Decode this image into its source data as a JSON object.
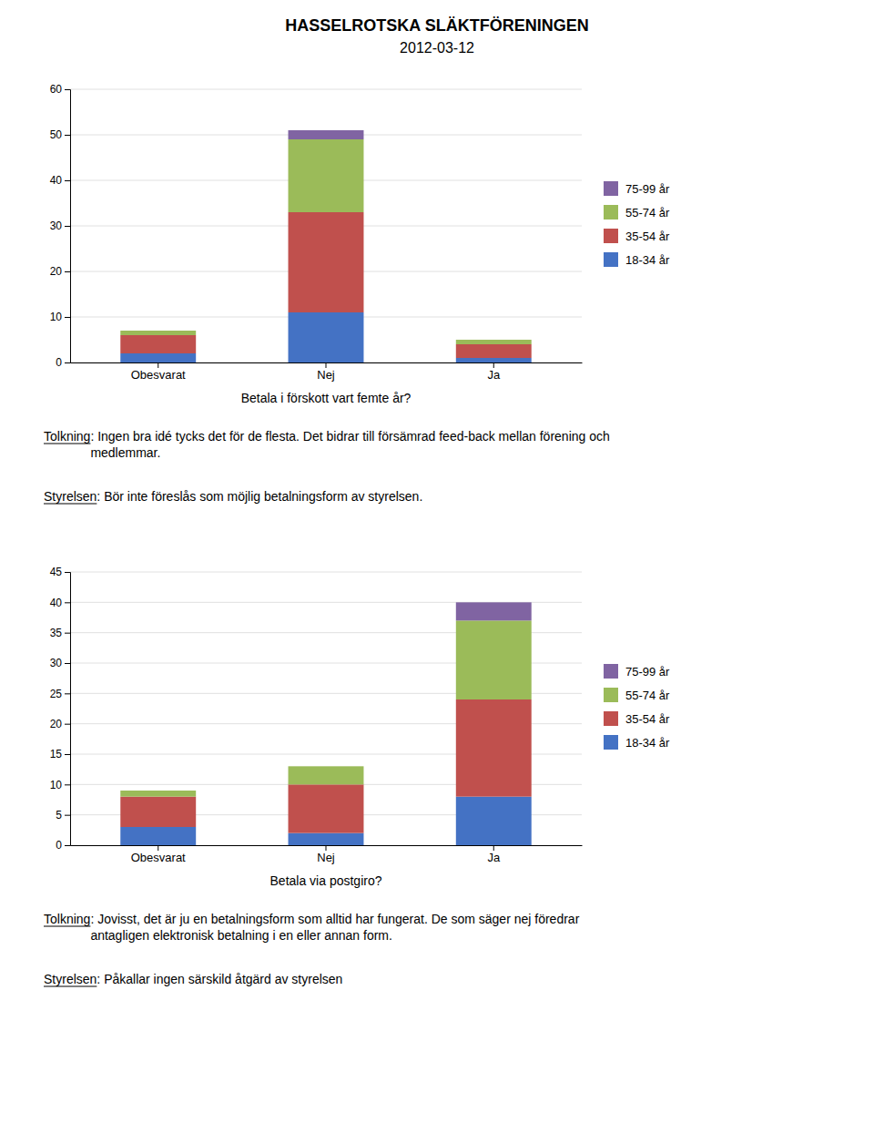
{
  "title": "HASSELROTSKA SLÄKTFÖRENINGEN",
  "subtitle": "2012-03-12",
  "chart_data": [
    {
      "type": "bar",
      "stacked": true,
      "grid": true,
      "legend": "right",
      "categories": [
        "Obesvarat",
        "Nej",
        "Ja"
      ],
      "xlabel": "Betala i förskott vart femte år?",
      "series": [
        {
          "name": "18-34 år",
          "color": "#4472C4",
          "values": [
            2,
            11,
            1
          ]
        },
        {
          "name": "35-54 år",
          "color": "#C0504D",
          "values": [
            4,
            22,
            3
          ]
        },
        {
          "name": "55-74 år",
          "color": "#9BBB59",
          "values": [
            1,
            16,
            1
          ]
        },
        {
          "name": "75-99 år",
          "color": "#8064A2",
          "values": [
            0,
            2,
            0
          ]
        }
      ],
      "ylim": [
        0,
        60
      ],
      "yticks": [
        0,
        10,
        20,
        30,
        40,
        50,
        60
      ],
      "annotations": [
        {
          "label": "Tolkning",
          "text": ": Ingen bra idé tycks det för de flesta. Det bidrar till försämrad feed-back mellan förening och\nmedlemmar."
        },
        {
          "label": "Styrelsen",
          "text": ": Bör inte föreslås som möjlig betalningsform av styrelsen."
        }
      ]
    },
    {
      "type": "bar",
      "stacked": true,
      "grid": true,
      "legend": "right",
      "categories": [
        "Obesvarat",
        "Nej",
        "Ja"
      ],
      "xlabel": "Betala via postgiro?",
      "series": [
        {
          "name": "18-34 år",
          "color": "#4472C4",
          "values": [
            3,
            2,
            8
          ]
        },
        {
          "name": "35-54 år",
          "color": "#C0504D",
          "values": [
            5,
            8,
            16
          ]
        },
        {
          "name": "55-74 år",
          "color": "#9BBB59",
          "values": [
            1,
            3,
            13
          ]
        },
        {
          "name": "75-99 år",
          "color": "#8064A2",
          "values": [
            0,
            0,
            3
          ]
        }
      ],
      "ylim": [
        0,
        45
      ],
      "yticks": [
        0,
        5,
        10,
        15,
        20,
        25,
        30,
        35,
        40,
        45
      ],
      "annotations": [
        {
          "label": "Tolkning",
          "text": ": Jovisst, det är ju en betalningsform som alltid har fungerat. De som säger nej föredrar\nantagligen elektronisk betalning i en eller annan form."
        },
        {
          "label": "Styrelsen",
          "text": ": Påkallar ingen särskild åtgärd av styrelsen"
        }
      ]
    }
  ]
}
